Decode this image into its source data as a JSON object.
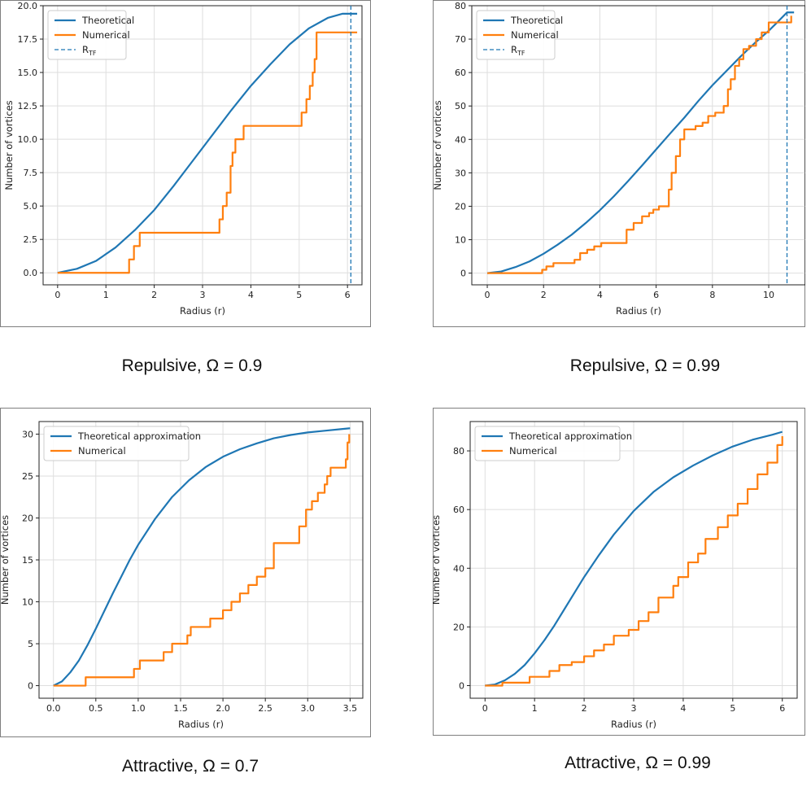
{
  "colors": {
    "theoretical": "#1f77b4",
    "numerical": "#ff7f0e",
    "rtf": "#1f77b4"
  },
  "chart_data": [
    {
      "type": "line",
      "caption": "Repulsive, Ω = 0.9",
      "xlabel": "Radius (r)",
      "ylabel": "Number of vortices",
      "xlim": [
        -0.3,
        6.3
      ],
      "ylim": [
        -0.9,
        20.0
      ],
      "xticks": [
        0,
        1,
        2,
        3,
        4,
        5,
        6
      ],
      "xtick_labels": [
        "0",
        "1",
        "2",
        "3",
        "4",
        "5",
        "6"
      ],
      "yticks": [
        0,
        2.5,
        5,
        7.5,
        10,
        12.5,
        15,
        17.5,
        20
      ],
      "ytick_labels": [
        "0.0",
        "2.5",
        "5.0",
        "7.5",
        "10.0",
        "12.5",
        "15.0",
        "17.5",
        "20.0"
      ],
      "grid": true,
      "legend_location": "top-left",
      "legend": [
        "Theoretical",
        "Numerical",
        "R_TF"
      ],
      "rtf": 6.07,
      "series": [
        {
          "name": "Theoretical",
          "style": "line",
          "x": [
            0,
            0.4,
            0.8,
            1.2,
            1.6,
            2.0,
            2.4,
            2.8,
            3.2,
            3.6,
            4.0,
            4.4,
            4.8,
            5.2,
            5.6,
            5.9,
            6.07,
            6.2
          ],
          "y": [
            0,
            0.3,
            0.9,
            1.9,
            3.2,
            4.7,
            6.5,
            8.4,
            10.3,
            12.2,
            14.0,
            15.6,
            17.1,
            18.3,
            19.1,
            19.4,
            19.4,
            19.4
          ]
        },
        {
          "name": "Numerical",
          "style": "step",
          "x": [
            0,
            1.48,
            1.58,
            1.7,
            3.35,
            3.42,
            3.5,
            3.58,
            3.62,
            3.68,
            3.74,
            3.85,
            5.05,
            5.15,
            5.22,
            5.28,
            5.32,
            5.36,
            6.2
          ],
          "y": [
            0,
            1,
            2,
            3,
            4,
            5,
            6,
            8,
            9,
            10,
            10,
            11,
            12,
            13,
            14,
            15,
            16,
            18,
            18
          ]
        }
      ]
    },
    {
      "type": "line",
      "caption": "Repulsive, Ω = 0.99",
      "xlabel": "Radius (r)",
      "ylabel": "Number of vortices",
      "xlim": [
        -0.55,
        11.3
      ],
      "ylim": [
        -3.5,
        80.0
      ],
      "xticks": [
        0,
        2,
        4,
        6,
        8,
        10
      ],
      "xtick_labels": [
        "0",
        "2",
        "4",
        "6",
        "8",
        "10"
      ],
      "yticks": [
        0,
        10,
        20,
        30,
        40,
        50,
        60,
        70,
        80
      ],
      "ytick_labels": [
        "0",
        "10",
        "20",
        "30",
        "40",
        "50",
        "60",
        "70",
        "80"
      ],
      "grid": true,
      "legend_location": "top-left",
      "legend": [
        "Theoretical",
        "Numerical",
        "R_TF"
      ],
      "rtf": 10.65,
      "series": [
        {
          "name": "Theoretical",
          "style": "line",
          "x": [
            0,
            0.5,
            1,
            1.5,
            2,
            2.5,
            3,
            3.5,
            4,
            4.5,
            5,
            5.5,
            6,
            6.5,
            7,
            7.5,
            8,
            8.5,
            9,
            9.5,
            10,
            10.3,
            10.65,
            10.9
          ],
          "y": [
            0,
            0.5,
            1.8,
            3.5,
            5.8,
            8.5,
            11.5,
            15,
            18.8,
            23,
            27.5,
            32.2,
            37,
            41.8,
            46.5,
            51.5,
            56.2,
            60.5,
            64.8,
            68.8,
            72.5,
            75,
            78,
            78
          ]
        },
        {
          "name": "Numerical",
          "style": "step",
          "x": [
            0,
            1.95,
            2.1,
            2.35,
            3.1,
            3.3,
            3.55,
            3.8,
            4.05,
            4.95,
            5.2,
            5.5,
            5.75,
            5.9,
            6.1,
            6.45,
            6.55,
            6.7,
            6.85,
            7.0,
            7.15,
            7.4,
            7.65,
            7.85,
            8.1,
            8.4,
            8.55,
            8.65,
            8.8,
            8.95,
            9.1,
            9.3,
            9.55,
            9.75,
            10.0,
            10.3,
            10.8
          ],
          "y": [
            0,
            1,
            2,
            3,
            4,
            6,
            7,
            8,
            9,
            13,
            15,
            17,
            18,
            19,
            20,
            25,
            30,
            35,
            40,
            43,
            43,
            44,
            45,
            47,
            48,
            50,
            55,
            58,
            62,
            64,
            67,
            68,
            70,
            72,
            75,
            75,
            77
          ]
        }
      ]
    },
    {
      "type": "line",
      "caption": "Attractive, Ω = 0.7",
      "xlabel": "Radius (r)",
      "ylabel": "Number of vortices",
      "xlim": [
        -0.17,
        3.65
      ],
      "ylim": [
        -1.5,
        31.5
      ],
      "xticks": [
        0,
        0.5,
        1,
        1.5,
        2,
        2.5,
        3,
        3.5
      ],
      "xtick_labels": [
        "0.0",
        "0.5",
        "1.0",
        "1.5",
        "2.0",
        "2.5",
        "3.0",
        "3.5"
      ],
      "yticks": [
        0,
        5,
        10,
        15,
        20,
        25,
        30
      ],
      "ytick_labels": [
        "0",
        "5",
        "10",
        "15",
        "20",
        "25",
        "30"
      ],
      "grid": true,
      "legend_location": "top-left",
      "legend": [
        "Theoretical approximation",
        "Numerical"
      ],
      "rtf": null,
      "series": [
        {
          "name": "Theoretical approximation",
          "style": "line",
          "x": [
            0,
            0.1,
            0.2,
            0.3,
            0.4,
            0.5,
            0.6,
            0.7,
            0.8,
            0.9,
            1.0,
            1.2,
            1.4,
            1.6,
            1.8,
            2.0,
            2.2,
            2.4,
            2.6,
            2.8,
            3.0,
            3.2,
            3.4,
            3.5
          ],
          "y": [
            0,
            0.5,
            1.6,
            3.0,
            4.8,
            6.8,
            8.9,
            11.0,
            13.0,
            15.0,
            16.8,
            19.9,
            22.5,
            24.5,
            26.1,
            27.3,
            28.2,
            28.9,
            29.5,
            29.9,
            30.2,
            30.4,
            30.6,
            30.7
          ]
        },
        {
          "name": "Numerical",
          "style": "step",
          "x": [
            0,
            0.38,
            0.95,
            1.02,
            1.3,
            1.4,
            1.58,
            1.62,
            1.85,
            2.0,
            2.1,
            2.2,
            2.3,
            2.4,
            2.5,
            2.6,
            2.9,
            2.98,
            3.05,
            3.12,
            3.2,
            3.23,
            3.27,
            3.3,
            3.45,
            3.47,
            3.49
          ],
          "y": [
            0,
            1,
            2,
            3,
            4,
            5,
            6,
            7,
            8,
            9,
            10,
            11,
            12,
            13,
            14,
            17,
            19,
            21,
            22,
            23,
            24,
            25,
            26,
            26,
            27,
            29,
            30
          ]
        }
      ]
    },
    {
      "type": "line",
      "caption": "Attractive, Ω = 0.99",
      "xlabel": "Radius (r)",
      "ylabel": "Number of vortices",
      "xlim": [
        -0.3,
        6.3
      ],
      "ylim": [
        -4.3,
        90.0
      ],
      "xticks": [
        0,
        1,
        2,
        3,
        4,
        5,
        6
      ],
      "xtick_labels": [
        "0",
        "1",
        "2",
        "3",
        "4",
        "5",
        "6"
      ],
      "yticks": [
        0,
        20,
        40,
        60,
        80
      ],
      "ytick_labels": [
        "0",
        "20",
        "40",
        "60",
        "80"
      ],
      "grid": true,
      "legend_location": "top-left",
      "legend": [
        "Theoretical approximation",
        "Numerical"
      ],
      "rtf": null,
      "series": [
        {
          "name": "Theoretical approximation",
          "style": "line",
          "x": [
            0,
            0.2,
            0.4,
            0.6,
            0.8,
            1.0,
            1.2,
            1.4,
            1.6,
            1.8,
            2.0,
            2.3,
            2.6,
            3.0,
            3.4,
            3.8,
            4.2,
            4.6,
            5.0,
            5.4,
            5.8,
            6.0
          ],
          "y": [
            0,
            0.4,
            1.8,
            4,
            7,
            11,
            15.5,
            20.5,
            26,
            31.5,
            37,
            44.5,
            51.5,
            59.5,
            66,
            71,
            75,
            78.5,
            81.5,
            83.8,
            85.5,
            86.5
          ]
        },
        {
          "name": "Numerical",
          "style": "step",
          "x": [
            0,
            0.35,
            0.9,
            1.0,
            1.3,
            1.5,
            1.75,
            2.0,
            2.2,
            2.4,
            2.6,
            2.9,
            3.1,
            3.3,
            3.5,
            3.8,
            3.9,
            4.1,
            4.3,
            4.45,
            4.7,
            4.9,
            5.1,
            5.3,
            5.5,
            5.7,
            5.9,
            6.0
          ],
          "y": [
            0,
            1,
            3,
            3,
            5,
            7,
            8,
            10,
            12,
            14,
            17,
            19,
            22,
            25,
            30,
            34,
            37,
            42,
            45,
            50,
            54,
            58,
            62,
            67,
            72,
            76,
            82,
            85
          ]
        }
      ]
    }
  ]
}
